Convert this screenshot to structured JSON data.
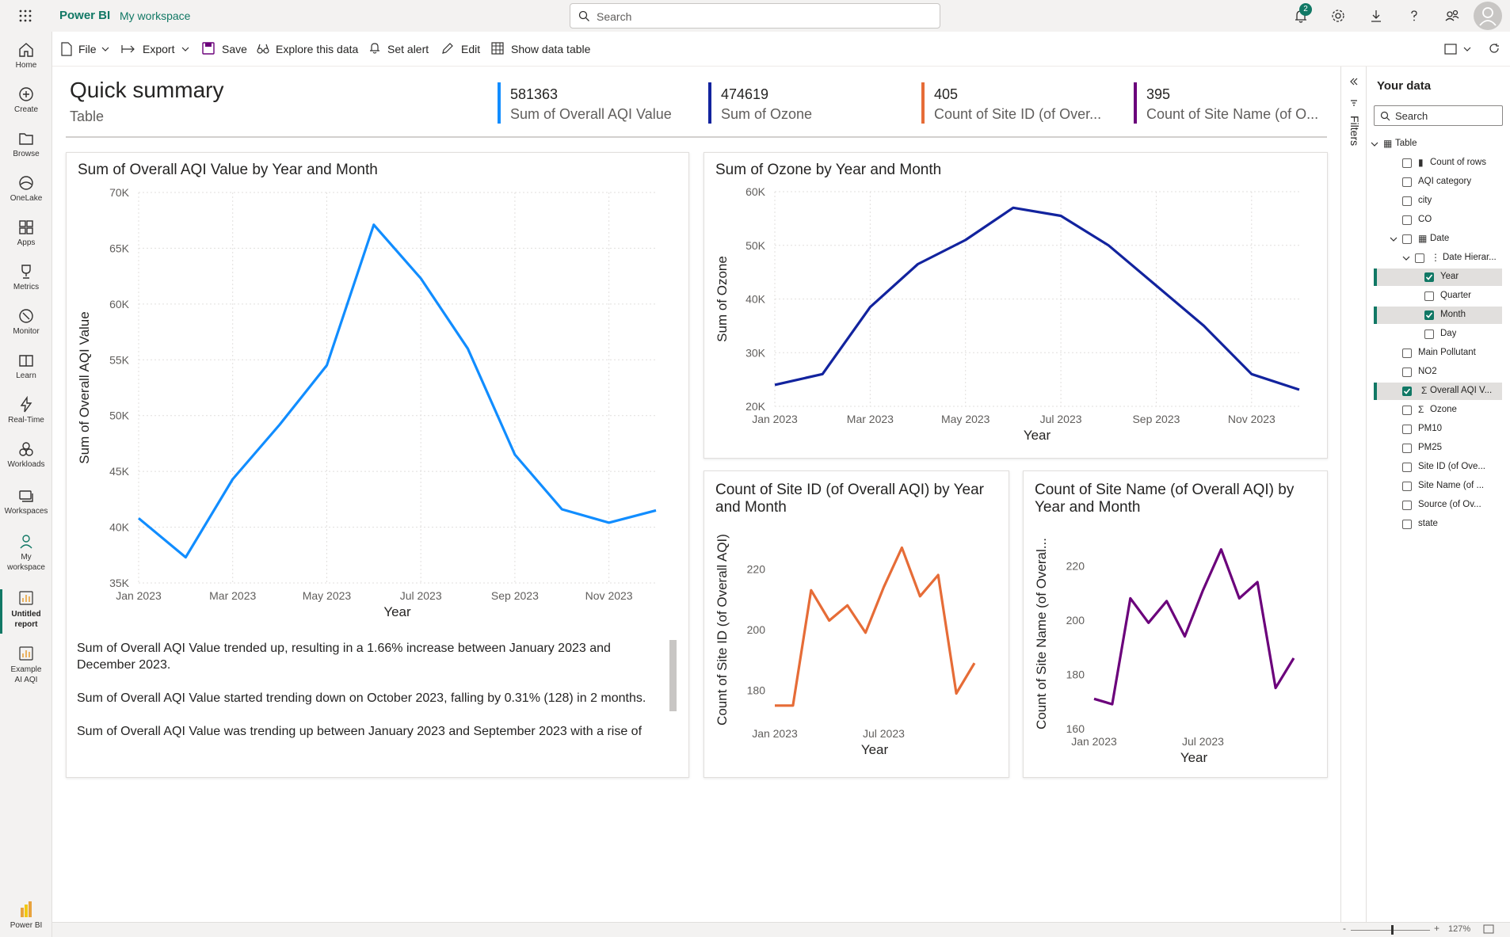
{
  "app": {
    "brand": "Power BI",
    "workspace_link": "My workspace",
    "search_placeholder": "Search",
    "notification_count": "2",
    "accent": "#117865"
  },
  "nav": {
    "items": [
      {
        "label": "Home",
        "icon": "home-icon"
      },
      {
        "label": "Create",
        "icon": "create-icon"
      },
      {
        "label": "Browse",
        "icon": "browse-icon"
      },
      {
        "label": "OneLake",
        "icon": "onelake-icon"
      },
      {
        "label": "Apps",
        "icon": "apps-icon"
      },
      {
        "label": "Metrics",
        "icon": "metrics-icon"
      },
      {
        "label": "Monitor",
        "icon": "monitor-icon"
      },
      {
        "label": "Learn",
        "icon": "learn-icon"
      },
      {
        "label": "Real-Time",
        "icon": "realtime-icon"
      },
      {
        "label": "Workloads",
        "icon": "workloads-icon"
      },
      {
        "label": "Workspaces",
        "icon": "workspaces-icon"
      },
      {
        "label": "My workspace",
        "icon": "my-workspace-icon"
      },
      {
        "label": "Untitled report",
        "icon": "report-icon"
      },
      {
        "label": "Example AI AQI",
        "icon": "report-icon"
      }
    ],
    "footer_label": "Power BI"
  },
  "toolbar": {
    "file": "File",
    "export": "Export",
    "save": "Save",
    "explore": "Explore this data",
    "set_alert": "Set alert",
    "edit": "Edit",
    "show_table": "Show data table"
  },
  "report": {
    "title": "Quick summary",
    "subtitle": "Table",
    "kpis": [
      {
        "value": "581363",
        "label": "Sum of Overall AQI Value",
        "color": "#118DFF"
      },
      {
        "value": "474619",
        "label": "Sum of Ozone",
        "color": "#12239E"
      },
      {
        "value": "405",
        "label": "Count of Site ID (of Over...",
        "color": "#E66C37"
      },
      {
        "value": "395",
        "label": "Count of Site Name (of O...",
        "color": "#6B007B"
      }
    ],
    "narrative": [
      "Sum of Overall AQI Value trended up, resulting in a 1.66% increase between January 2023 and December 2023.",
      "Sum of Overall AQI Value started trending down on October 2023, falling by 0.31% (128) in 2 months.",
      "Sum of Overall AQI Value was trending up between January 2023 and September 2023 with a rise of"
    ]
  },
  "chart_data": [
    {
      "type": "line",
      "title": "Sum of Overall AQI Value by Year and Month",
      "xlabel": "Year",
      "ylabel": "Sum of Overall AQI Value",
      "x": [
        "Jan 2023",
        "Feb 2023",
        "Mar 2023",
        "Apr 2023",
        "May 2023",
        "Jun 2023",
        "Jul 2023",
        "Aug 2023",
        "Sep 2023",
        "Oct 2023",
        "Nov 2023",
        "Dec 2023"
      ],
      "xticks": [
        "Jan 2023",
        "Mar 2023",
        "May 2023",
        "Jul 2023",
        "Sep 2023",
        "Nov 2023"
      ],
      "yticks": [
        "35K",
        "40K",
        "45K",
        "50K",
        "55K",
        "60K",
        "65K",
        "70K"
      ],
      "ylim": [
        35000,
        70000
      ],
      "series": [
        {
          "values": [
            40800,
            37300,
            44300,
            49200,
            54500,
            67100,
            62300,
            56000,
            46500,
            41600,
            40400,
            41500
          ],
          "color": "#118DFF"
        }
      ],
      "grid": true
    },
    {
      "type": "line",
      "title": "Sum of Ozone by Year and Month",
      "xlabel": "Year",
      "ylabel": "Sum of Ozone",
      "x": [
        "Jan 2023",
        "Feb 2023",
        "Mar 2023",
        "Apr 2023",
        "May 2023",
        "Jun 2023",
        "Jul 2023",
        "Aug 2023",
        "Sep 2023",
        "Oct 2023",
        "Nov 2023",
        "Dec 2023"
      ],
      "xticks": [
        "Jan 2023",
        "Mar 2023",
        "May 2023",
        "Jul 2023",
        "Sep 2023",
        "Nov 2023"
      ],
      "yticks": [
        "20K",
        "30K",
        "40K",
        "50K",
        "60K"
      ],
      "ylim": [
        20000,
        60000
      ],
      "series": [
        {
          "values": [
            24000,
            26000,
            38500,
            46500,
            51000,
            57000,
            55500,
            50000,
            42500,
            35000,
            26000,
            23100
          ],
          "color": "#12239E"
        }
      ],
      "grid": true
    },
    {
      "type": "line",
      "title": "Count of Site ID (of Overall AQI) by Year and Month",
      "xlabel": "Year",
      "ylabel": "Count of Site ID (of Overall AQI)",
      "x": [
        "Jan 2023",
        "Feb 2023",
        "Mar 2023",
        "Apr 2023",
        "May 2023",
        "Jun 2023",
        "Jul 2023",
        "Aug 2023",
        "Sep 2023",
        "Oct 2023",
        "Nov 2023",
        "Dec 2023"
      ],
      "xticks": [
        "Jan 2023",
        "Jul 2023"
      ],
      "yticks": [
        "180",
        "200",
        "220"
      ],
      "ylim": [
        170,
        230
      ],
      "series": [
        {
          "values": [
            175,
            175,
            213,
            203,
            208,
            199,
            214,
            227,
            211,
            218,
            179,
            189
          ],
          "color": "#E66C37"
        }
      ],
      "grid": false
    },
    {
      "type": "line",
      "title": "Count of Site Name (of Overall AQI) by Year and Month",
      "xlabel": "Year",
      "ylabel": "Count of Site Name (of Overal...",
      "x": [
        "Jan 2023",
        "Feb 2023",
        "Mar 2023",
        "Apr 2023",
        "May 2023",
        "Jun 2023",
        "Jul 2023",
        "Aug 2023",
        "Sep 2023",
        "Oct 2023",
        "Nov 2023",
        "Dec 2023"
      ],
      "xticks": [
        "Jan 2023",
        "Jul 2023"
      ],
      "yticks": [
        "160",
        "180",
        "200",
        "220"
      ],
      "ylim": [
        160,
        230
      ],
      "series": [
        {
          "values": [
            171,
            169,
            208,
            199,
            207,
            194,
            211,
            226,
            208,
            214,
            175,
            186
          ],
          "color": "#6B007B"
        }
      ],
      "grid": false
    }
  ],
  "filters": {
    "label": "Filters"
  },
  "data_pane": {
    "title": "Your data",
    "search_placeholder": "Search",
    "fields": [
      {
        "label": "Table",
        "level": 0,
        "kind": "table",
        "checked": false,
        "expand": true
      },
      {
        "label": "Count of rows",
        "level": 1,
        "kind": "calc",
        "checked": false
      },
      {
        "label": "AQI category",
        "level": 1,
        "kind": "field",
        "checked": false
      },
      {
        "label": "city",
        "level": 1,
        "kind": "field",
        "checked": false
      },
      {
        "label": "CO",
        "level": 1,
        "kind": "field",
        "checked": false
      },
      {
        "label": "Date",
        "level": 1,
        "kind": "table",
        "checked": false,
        "expand": true
      },
      {
        "label": "Date Hierar...",
        "level": 2,
        "kind": "hier",
        "checked": false,
        "expand": true
      },
      {
        "label": "Year",
        "level": 3,
        "kind": "field",
        "checked": true
      },
      {
        "label": "Quarter",
        "level": 3,
        "kind": "field",
        "checked": false
      },
      {
        "label": "Month",
        "level": 3,
        "kind": "field",
        "checked": true
      },
      {
        "label": "Day",
        "level": 3,
        "kind": "field",
        "checked": false
      },
      {
        "label": "Main Pollutant",
        "level": 1,
        "kind": "field",
        "checked": false
      },
      {
        "label": "NO2",
        "level": 1,
        "kind": "field",
        "checked": false
      },
      {
        "label": "Overall AQI V...",
        "level": 1,
        "kind": "sum",
        "checked": true
      },
      {
        "label": "Ozone",
        "level": 1,
        "kind": "sum",
        "checked": false
      },
      {
        "label": "PM10",
        "level": 1,
        "kind": "field",
        "checked": false
      },
      {
        "label": "PM25",
        "level": 1,
        "kind": "field",
        "checked": false
      },
      {
        "label": "Site ID (of Ove...",
        "level": 1,
        "kind": "field",
        "checked": false
      },
      {
        "label": "Site Name (of ...",
        "level": 1,
        "kind": "field",
        "checked": false
      },
      {
        "label": "Source (of Ov...",
        "level": 1,
        "kind": "field",
        "checked": false
      },
      {
        "label": "state",
        "level": 1,
        "kind": "field",
        "checked": false
      }
    ]
  },
  "status": {
    "zoom": "127%"
  }
}
